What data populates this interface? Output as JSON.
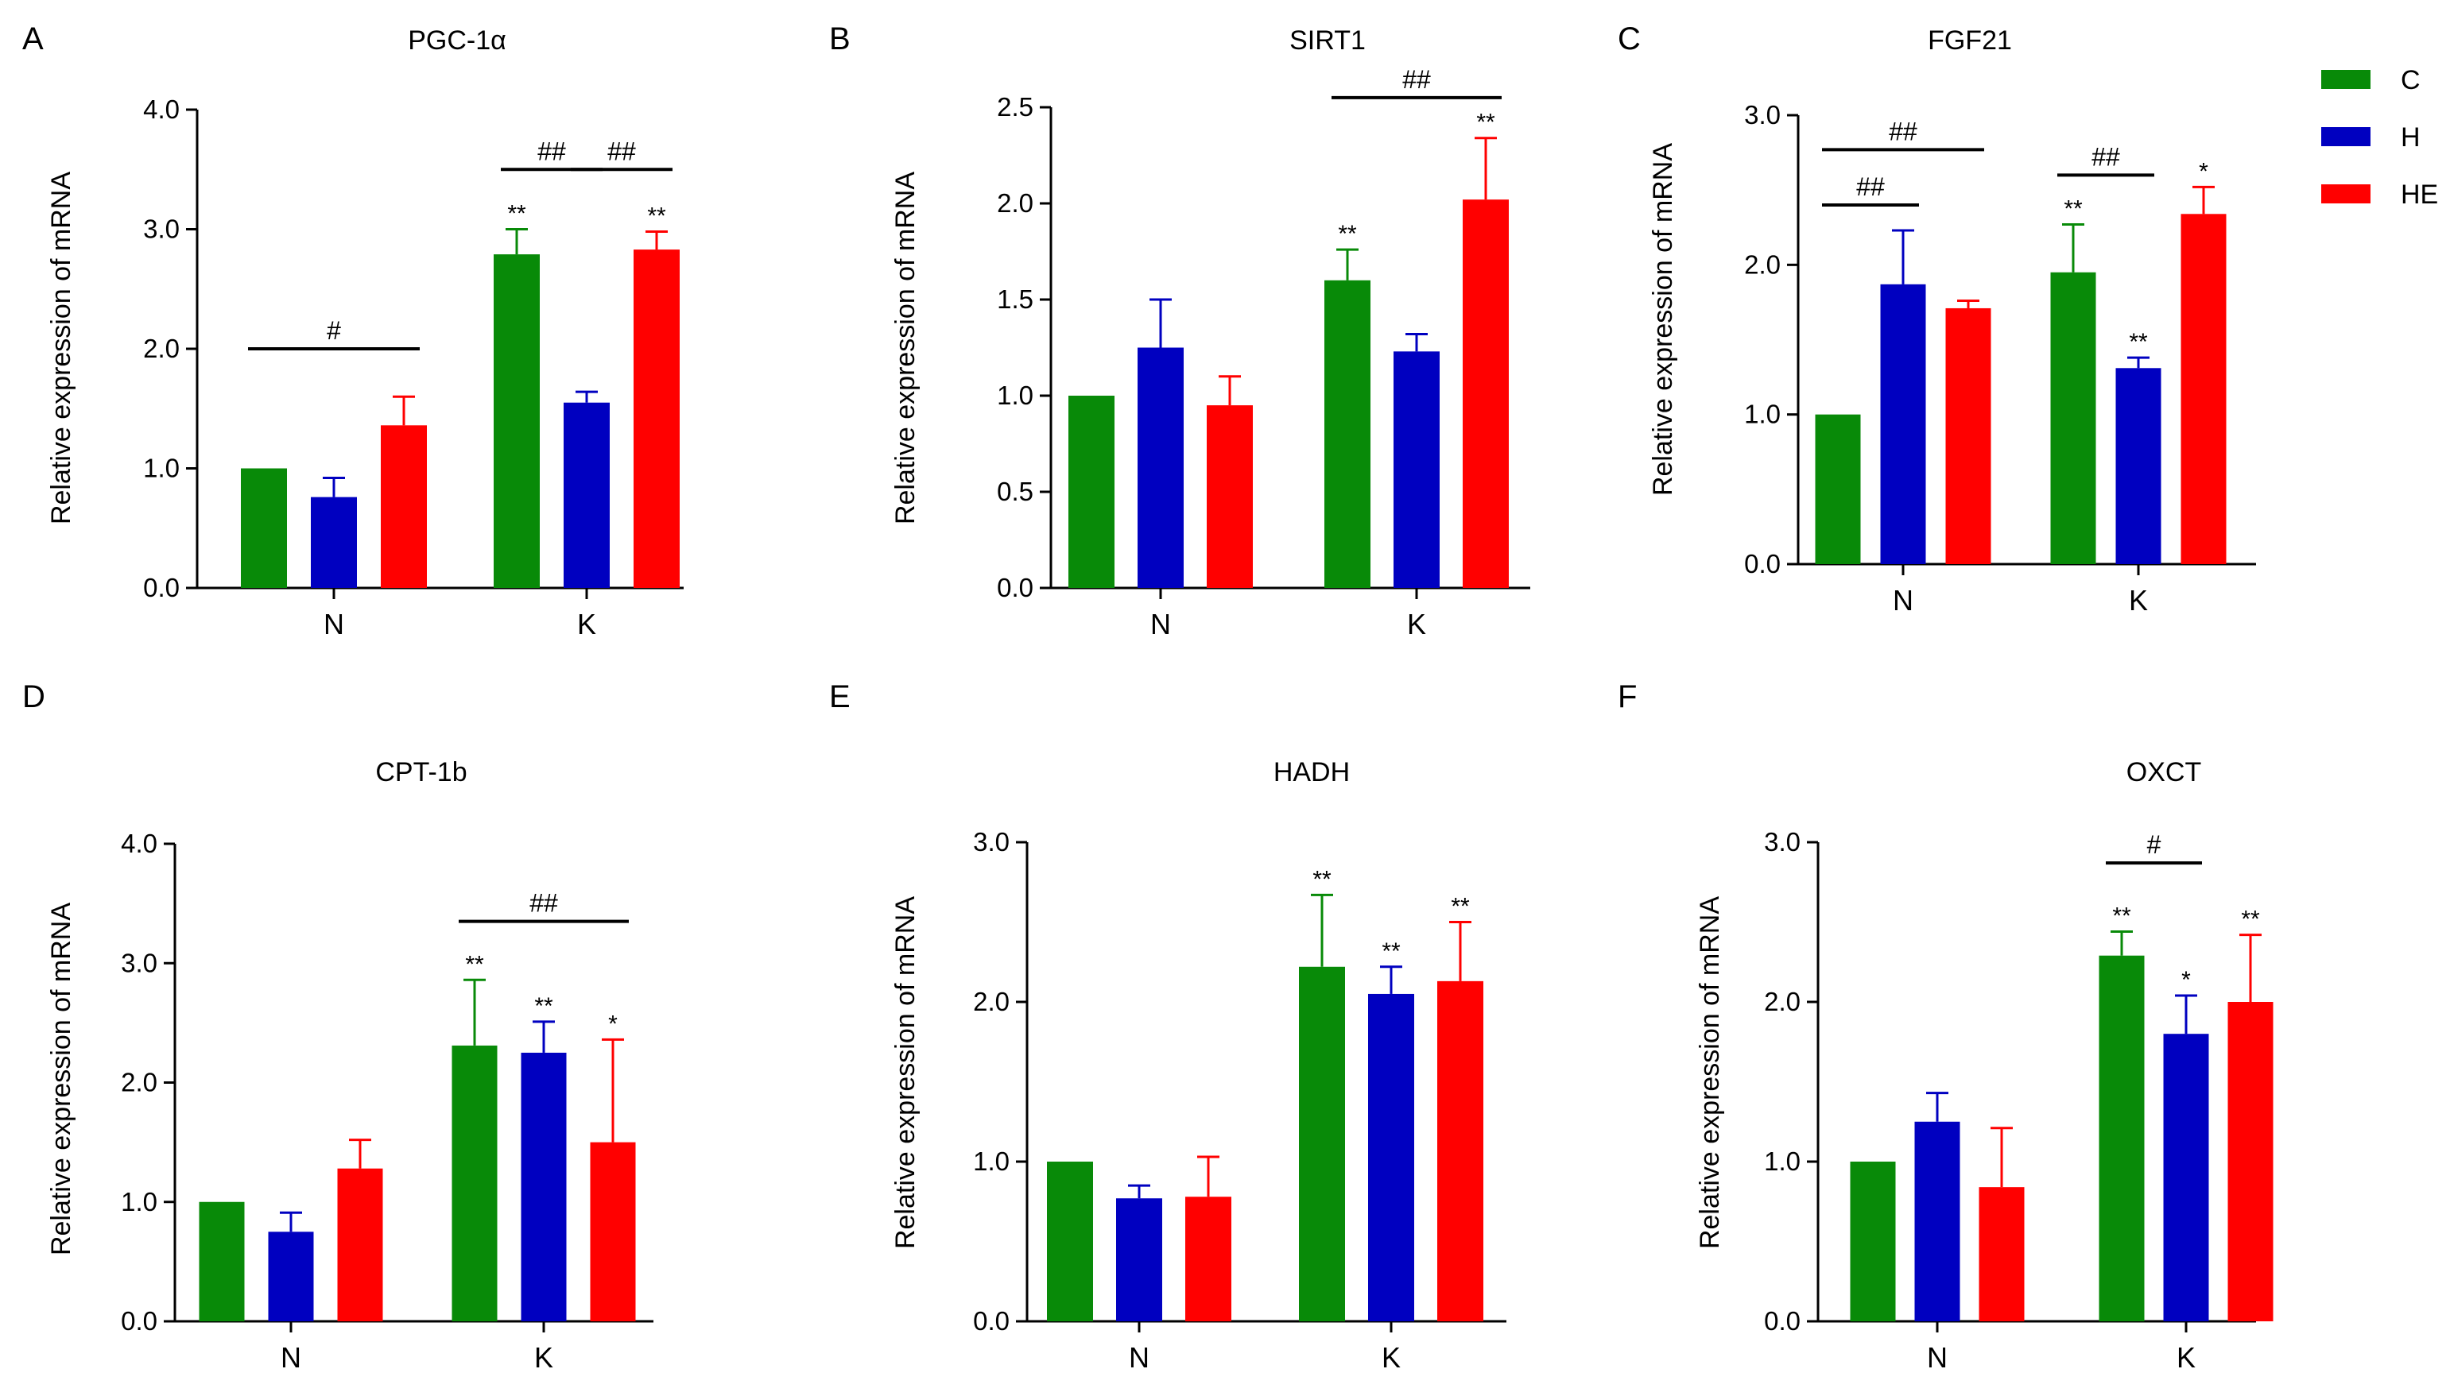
{
  "legend": [
    {
      "label": "C",
      "color": "#088a08"
    },
    {
      "label": "H",
      "color": "#0000c0"
    },
    {
      "label": "HE",
      "color": "#ff0000"
    }
  ],
  "chart_data": [
    {
      "panel": "A",
      "type": "bar",
      "title": "PGC-1α",
      "ylabel": "Relative expression of mRNA",
      "ylim": [
        0,
        4.0
      ],
      "yticks": [
        "0.0",
        "1.0",
        "2.0",
        "3.0",
        "4.0"
      ],
      "categories": [
        "N",
        "K"
      ],
      "series": [
        {
          "name": "C",
          "values": [
            1.0,
            2.79
          ],
          "errors": [
            0,
            0.21
          ],
          "marks": [
            "",
            "**"
          ]
        },
        {
          "name": "H",
          "values": [
            0.76,
            1.55
          ],
          "errors": [
            0.16,
            0.09
          ],
          "marks": [
            "",
            ""
          ]
        },
        {
          "name": "HE",
          "values": [
            1.36,
            2.83
          ],
          "errors": [
            0.24,
            0.15
          ],
          "marks": [
            "",
            "**"
          ]
        }
      ],
      "comparisons": [
        {
          "label": "#",
          "from": [
            0,
            0
          ],
          "to": [
            0,
            2
          ],
          "level": 2.0
        },
        {
          "label": "##",
          "from": [
            1,
            0
          ],
          "to": [
            1,
            1
          ],
          "level": 3.5
        },
        {
          "label": "##",
          "from": [
            1,
            1
          ],
          "to": [
            1,
            2
          ],
          "level": 3.5
        }
      ]
    },
    {
      "panel": "B",
      "type": "bar",
      "title": "SIRT1",
      "ylabel": "Relative expression of mRNA",
      "ylim": [
        0,
        2.5
      ],
      "yticks": [
        "0.0",
        "0.5",
        "1.0",
        "1.5",
        "2.0",
        "2.5"
      ],
      "categories": [
        "N",
        "K"
      ],
      "series": [
        {
          "name": "C",
          "values": [
            1.0,
            1.6
          ],
          "errors": [
            0,
            0.16
          ],
          "marks": [
            "",
            "**"
          ]
        },
        {
          "name": "H",
          "values": [
            1.25,
            1.23
          ],
          "errors": [
            0.25,
            0.09
          ],
          "marks": [
            "",
            ""
          ]
        },
        {
          "name": "HE",
          "values": [
            0.95,
            2.02
          ],
          "errors": [
            0.15,
            0.32
          ],
          "marks": [
            "",
            "**"
          ]
        }
      ],
      "comparisons": [
        {
          "label": "##",
          "from": [
            1,
            0
          ],
          "to": [
            1,
            2
          ],
          "level": 2.55
        }
      ]
    },
    {
      "panel": "C",
      "type": "bar",
      "title": "FGF21",
      "ylabel": "Relative expression of mRNA",
      "ylim": [
        0,
        3.0
      ],
      "yticks": [
        "0.0",
        "1.0",
        "2.0",
        "3.0"
      ],
      "categories": [
        "N",
        "K"
      ],
      "series": [
        {
          "name": "C",
          "values": [
            1.0,
            1.95
          ],
          "errors": [
            0,
            0.32
          ],
          "marks": [
            "",
            "**"
          ]
        },
        {
          "name": "H",
          "values": [
            1.87,
            1.31
          ],
          "errors": [
            0.36,
            0.07
          ],
          "marks": [
            "",
            "**"
          ]
        },
        {
          "name": "HE",
          "values": [
            1.71,
            2.34
          ],
          "errors": [
            0.05,
            0.18
          ],
          "marks": [
            "",
            "*"
          ]
        }
      ],
      "comparisons": [
        {
          "label": "##",
          "from": [
            0,
            0
          ],
          "to": [
            0,
            1
          ],
          "level": 2.4
        },
        {
          "label": "##",
          "from": [
            0,
            0
          ],
          "to": [
            0,
            2
          ],
          "level": 2.77
        },
        {
          "label": "##",
          "from": [
            1,
            0
          ],
          "to": [
            1,
            1
          ],
          "level": 2.6
        }
      ]
    },
    {
      "panel": "D",
      "type": "bar",
      "title": "CPT-1b",
      "ylabel": "Relative expression of mRNA",
      "ylim": [
        0,
        4.0
      ],
      "yticks": [
        "0.0",
        "1.0",
        "2.0",
        "3.0",
        "4.0"
      ],
      "categories": [
        "N",
        "K"
      ],
      "series": [
        {
          "name": "C",
          "values": [
            1.0,
            2.31
          ],
          "errors": [
            0,
            0.55
          ],
          "marks": [
            "",
            "**"
          ]
        },
        {
          "name": "H",
          "values": [
            0.75,
            2.25
          ],
          "errors": [
            0.16,
            0.26
          ],
          "marks": [
            "",
            "**"
          ]
        },
        {
          "name": "HE",
          "values": [
            1.28,
            1.5
          ],
          "errors": [
            0.24,
            0.86
          ],
          "marks": [
            "",
            "*"
          ]
        }
      ],
      "comparisons": [
        {
          "label": "##",
          "from": [
            1,
            0
          ],
          "to": [
            1,
            2
          ],
          "level": 3.35
        }
      ]
    },
    {
      "panel": "E",
      "type": "bar",
      "title": "HADH",
      "ylabel": "Relative expression of mRNA",
      "ylim": [
        0,
        3.0
      ],
      "yticks": [
        "0.0",
        "1.0",
        "2.0",
        "3.0"
      ],
      "categories": [
        "N",
        "K"
      ],
      "series": [
        {
          "name": "C",
          "values": [
            1.0,
            2.22
          ],
          "errors": [
            0,
            0.45
          ],
          "marks": [
            "",
            "**"
          ]
        },
        {
          "name": "H",
          "values": [
            0.77,
            2.05
          ],
          "errors": [
            0.08,
            0.17
          ],
          "marks": [
            "",
            "**"
          ]
        },
        {
          "name": "HE",
          "values": [
            0.78,
            2.13
          ],
          "errors": [
            0.25,
            0.37
          ],
          "marks": [
            "",
            "**"
          ]
        }
      ],
      "comparisons": []
    },
    {
      "panel": "F",
      "type": "bar",
      "title": "OXCT",
      "ylabel": "Relative expression of  mRNA",
      "ylabel_serif": true,
      "ylim": [
        0,
        3.0
      ],
      "yticks": [
        "0.0",
        "1.0",
        "2.0",
        "3.0"
      ],
      "categories": [
        "N",
        "K"
      ],
      "series": [
        {
          "name": "C",
          "values": [
            1.0,
            2.29
          ],
          "errors": [
            0,
            0.15
          ],
          "marks": [
            "",
            "**"
          ]
        },
        {
          "name": "H",
          "values": [
            1.25,
            1.8
          ],
          "errors": [
            0.18,
            0.24
          ],
          "marks": [
            "",
            "*"
          ]
        },
        {
          "name": "HE",
          "values": [
            0.84,
            2.0
          ],
          "errors": [
            0.37,
            0.42
          ],
          "marks": [
            "",
            "**"
          ]
        }
      ],
      "comparisons": [
        {
          "label": "#",
          "from": [
            1,
            0
          ],
          "to": [
            1,
            1
          ],
          "level": 2.87
        }
      ]
    }
  ]
}
